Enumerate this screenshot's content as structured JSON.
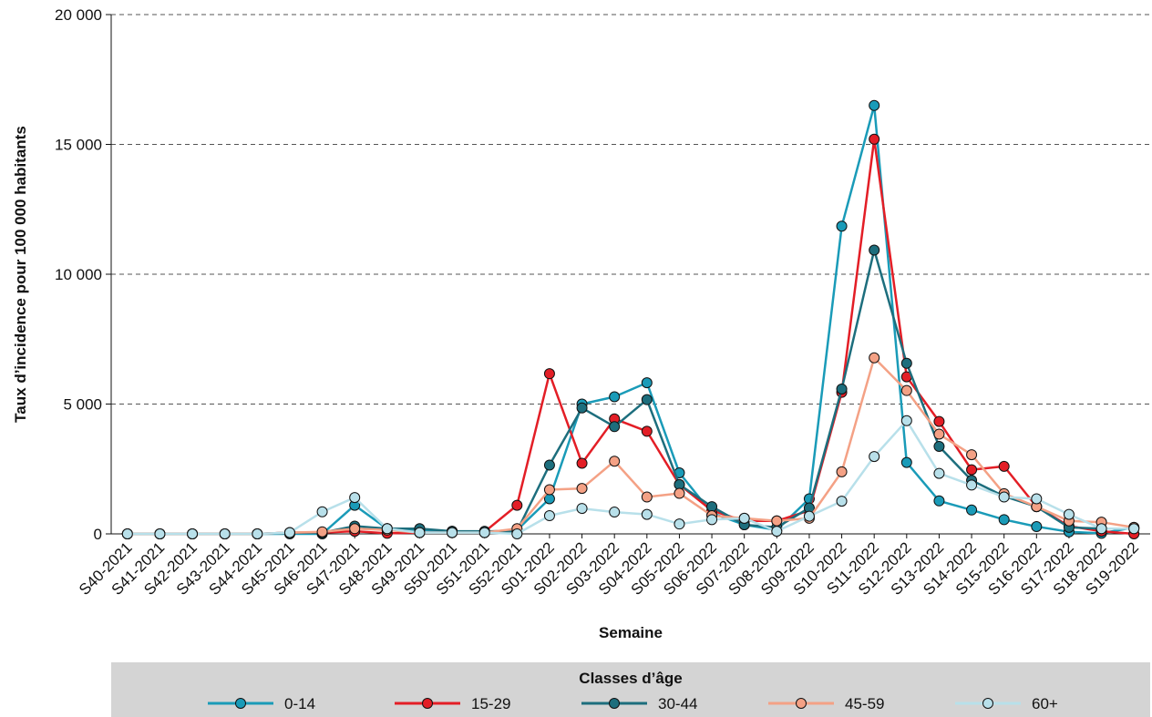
{
  "chart_data": {
    "type": "line",
    "xlabel": "Semaine",
    "ylabel": "Taux d’incidence pour 100 000 habitants",
    "ylim": [
      0,
      20000
    ],
    "yticks": [
      0,
      5000,
      10000,
      15000,
      20000
    ],
    "ytick_labels": [
      "0",
      "5 000",
      "10 000",
      "15 000",
      "20 000"
    ],
    "grid": "horizontal dashed",
    "legend_title": "Classes d’âge",
    "legend_position": "bottom",
    "categories": [
      "S40-2021",
      "S41-2021",
      "S42-2021",
      "S43-2021",
      "S44-2021",
      "S45-2021",
      "S46-2021",
      "S47-2021",
      "S48-2021",
      "S49-2021",
      "S50-2021",
      "S51-2021",
      "S52-2021",
      "S01-2022",
      "S02-2022",
      "S03-2022",
      "S04-2022",
      "S05-2022",
      "S06-2022",
      "S07-2022",
      "S08-2022",
      "S09-2022",
      "S10-2022",
      "S11-2022",
      "S12-2022",
      "S13-2022",
      "S14-2022",
      "S15-2022",
      "S16-2022",
      "S17-2022",
      "S18-2022",
      "S19-2022"
    ],
    "series": [
      {
        "name": "0-14",
        "color": "#1a9bb8",
        "values": [
          0,
          0,
          0,
          0,
          0,
          0,
          0,
          1100,
          200,
          150,
          100,
          80,
          150,
          1350,
          5000,
          5280,
          5820,
          2350,
          800,
          350,
          150,
          1350,
          11850,
          16500,
          2750,
          1270,
          920,
          550,
          280,
          80,
          20,
          250
        ]
      },
      {
        "name": "15-29",
        "color": "#e31e26",
        "values": [
          0,
          0,
          0,
          0,
          0,
          50,
          50,
          100,
          20,
          50,
          50,
          80,
          1100,
          6170,
          2720,
          4430,
          3950,
          1900,
          900,
          500,
          500,
          900,
          5450,
          15200,
          6050,
          4330,
          2470,
          2600,
          1050,
          300,
          100,
          0
        ]
      },
      {
        "name": "30-44",
        "color": "#1d6e7d",
        "values": [
          0,
          0,
          0,
          0,
          0,
          50,
          50,
          300,
          200,
          200,
          100,
          100,
          100,
          2650,
          4850,
          4130,
          5170,
          1900,
          1050,
          350,
          250,
          1000,
          5580,
          10930,
          6570,
          3370,
          2060,
          1450,
          1050,
          250,
          200,
          200
        ]
      },
      {
        "name": "45-59",
        "color": "#f4a185",
        "values": [
          0,
          0,
          0,
          0,
          0,
          50,
          80,
          200,
          150,
          50,
          50,
          50,
          200,
          1700,
          1750,
          2800,
          1420,
          1560,
          700,
          600,
          500,
          600,
          2390,
          6780,
          5520,
          3840,
          3050,
          1550,
          1050,
          500,
          450,
          250
        ]
      },
      {
        "name": "60+",
        "color": "#b8e0ea",
        "values": [
          0,
          0,
          0,
          0,
          0,
          50,
          850,
          1400,
          200,
          50,
          50,
          50,
          0,
          700,
          980,
          840,
          750,
          380,
          550,
          600,
          100,
          680,
          1260,
          2980,
          4360,
          2330,
          1880,
          1420,
          1350,
          750,
          200,
          200
        ]
      }
    ]
  }
}
